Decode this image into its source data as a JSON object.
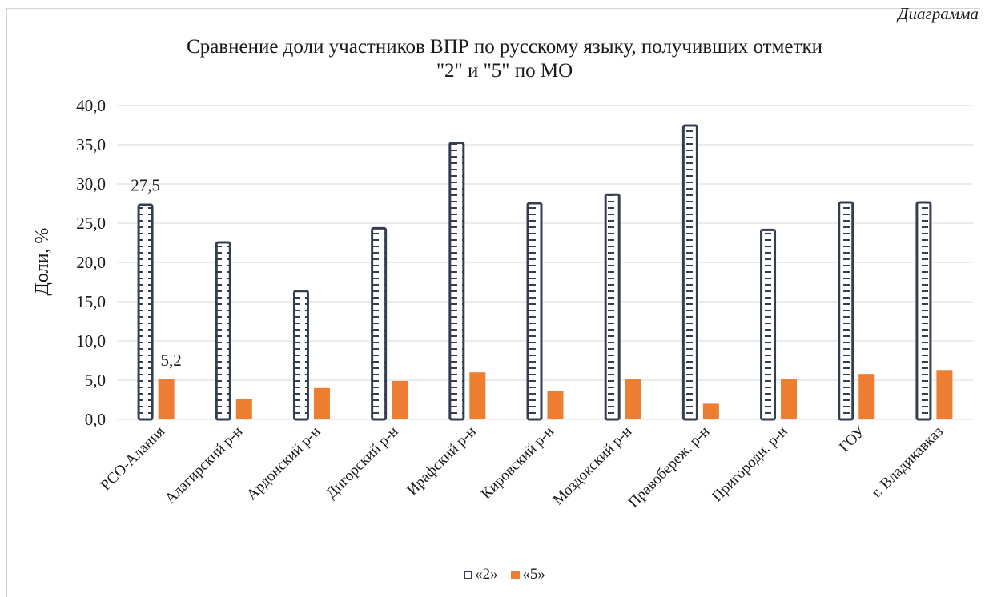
{
  "caption": "Диаграмма",
  "title_lines": [
    "Сравнение доли участников ВПР по русскому языку, получивших отметки",
    "\"2\" и \"5\" по МО"
  ],
  "colors": {
    "series_2_outline": "#333f50",
    "series_5_fill": "#ed7d31",
    "grid": "#d9d9d9"
  },
  "chart_data": {
    "type": "bar",
    "title": "Сравнение доли участников ВПР по русскому языку, получивших отметки \"2\" и \"5\" по МО",
    "xlabel": "",
    "ylabel": "Доли, %",
    "ylim": [
      0,
      40
    ],
    "yticks": [
      "0,0",
      "5,0",
      "10,0",
      "15,0",
      "20,0",
      "25,0",
      "30,0",
      "35,0",
      "40,0"
    ],
    "grid": true,
    "legend_position": "bottom",
    "categories": [
      "РСО-Алания",
      "Алагирский р-н",
      "Ардонский р-н",
      "Дигорский р-н",
      "Ирафский р-н",
      "Кировский р-н",
      "Моздокский р-н",
      "Правобереж. р-н",
      "Пригородн. р-н",
      "ГОУ",
      "г. Владикавказ"
    ],
    "series": [
      {
        "name": "«2»",
        "values": [
          27.5,
          22.7,
          16.5,
          24.5,
          35.4,
          27.7,
          28.8,
          37.6,
          24.3,
          27.8,
          27.8
        ]
      },
      {
        "name": "«5»",
        "values": [
          5.2,
          2.6,
          4.0,
          4.9,
          6.0,
          3.6,
          5.1,
          2.0,
          5.1,
          5.8,
          6.3
        ]
      }
    ],
    "data_labels": [
      {
        "series": 0,
        "category": "РСО-Алания",
        "text": "27,5"
      },
      {
        "series": 1,
        "category": "РСО-Алания",
        "text": "5,2"
      }
    ]
  }
}
